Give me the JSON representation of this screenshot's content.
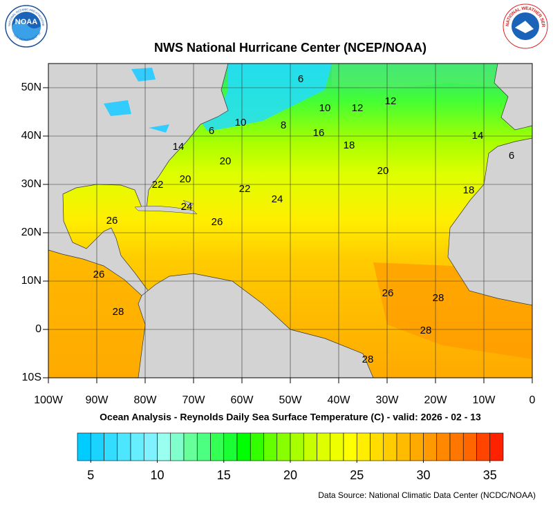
{
  "header": {
    "title": "NWS National Hurricane Center (NCEP/NOAA)",
    "subtitle": "Ocean Analysis - Reynolds Daily Sea Surface Temperature (C) - valid: 2026 - 02 - 13",
    "source": "Data Source: National Climatic Data Center (NCDC/NOAA)"
  },
  "logos": {
    "noaa": "NOAA",
    "noaa_ring": "NATIONAL OCEANIC AND ATMOSPHERIC ADMINISTRATION",
    "noaa_ring_bottom": "U.S. DEPARTMENT OF COMMERCE",
    "nws_ring": "NATIONAL WEATHER SERVICE"
  },
  "map": {
    "xlim": [
      -100,
      0
    ],
    "ylim": [
      -10,
      55
    ],
    "xticks": [
      {
        "value": -100,
        "label": "100W"
      },
      {
        "value": -90,
        "label": "90W"
      },
      {
        "value": -80,
        "label": "80W"
      },
      {
        "value": -70,
        "label": "70W"
      },
      {
        "value": -60,
        "label": "60W"
      },
      {
        "value": -50,
        "label": "50W"
      },
      {
        "value": -40,
        "label": "40W"
      },
      {
        "value": -30,
        "label": "30W"
      },
      {
        "value": -20,
        "label": "20W"
      },
      {
        "value": -10,
        "label": "10W"
      },
      0
    ],
    "yticks": [
      {
        "value": -10,
        "label": "10S"
      },
      0,
      {
        "value": 10,
        "label": "10N"
      },
      {
        "value": 20,
        "label": "20N"
      },
      {
        "value": 30,
        "label": "30N"
      },
      {
        "value": 40,
        "label": "40N"
      },
      {
        "value": 50,
        "label": "50N"
      }
    ],
    "grid": true,
    "contour_labels": [
      6,
      10,
      12,
      12,
      6,
      10,
      8,
      16,
      18,
      14,
      6,
      14,
      20,
      20,
      22,
      20,
      22,
      24,
      24,
      18,
      26,
      26,
      26,
      28,
      26,
      28,
      28,
      28
    ]
  },
  "colorbar": {
    "range": [
      4,
      36
    ],
    "ticks": [
      5,
      10,
      15,
      20,
      25,
      30,
      35
    ],
    "colors": [
      "#00ccff",
      "#1ad4ff",
      "#33ddff",
      "#4de6ff",
      "#66eeff",
      "#80f2ff",
      "#99ffee",
      "#80ffcc",
      "#66ff99",
      "#4dff80",
      "#33ff55",
      "#1aff33",
      "#00ff00",
      "#33ff00",
      "#66ff00",
      "#88ff00",
      "#a8ff00",
      "#c8ff00",
      "#ddff00",
      "#eeff00",
      "#ffff00",
      "#ffee00",
      "#ffdd00",
      "#ffcc00",
      "#ffbb00",
      "#ffaa00",
      "#ff9900",
      "#ff8800",
      "#ff7700",
      "#ff6600",
      "#ff4400",
      "#ff2200"
    ]
  }
}
